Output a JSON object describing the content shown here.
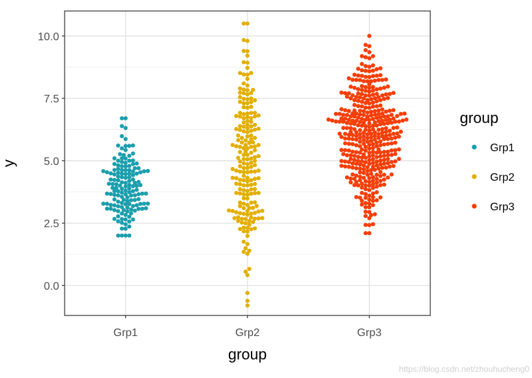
{
  "chart_data": {
    "type": "scatter",
    "subtype": "beeswarm",
    "xlabel": "group",
    "ylabel": "y",
    "categories": [
      "Grp1",
      "Grp2",
      "Grp3"
    ],
    "ylim": [
      -1.2,
      11.0
    ],
    "yticks": [
      0.0,
      2.5,
      5.0,
      7.5,
      10.0
    ],
    "ytick_labels": [
      "0.0",
      "2.5",
      "5.0",
      "7.5",
      "10.0"
    ],
    "grid": true,
    "legend": {
      "title": "group",
      "position": "right"
    },
    "series": [
      {
        "name": "Grp1",
        "color": "#1B9EAD",
        "n": 150,
        "mean": 4.0,
        "sd": 1.0,
        "min": 2.0,
        "max": 6.7,
        "seed": 11
      },
      {
        "name": "Grp2",
        "color": "#E3AE00",
        "n": 200,
        "mean": 4.8,
        "sd": 2.0,
        "min": -0.8,
        "max": 10.5,
        "seed": 23
      },
      {
        "name": "Grp3",
        "color": "#F53E07",
        "n": 400,
        "mean": 6.0,
        "sd": 1.5,
        "min": 2.1,
        "max": 10.0,
        "seed": 37
      }
    ]
  },
  "watermark": "https://blog.csdn.net/zhouhucheng0"
}
